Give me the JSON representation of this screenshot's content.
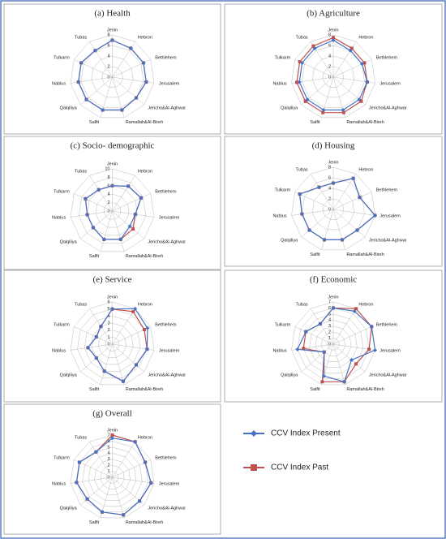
{
  "chart_data": [
    {
      "type": "radar",
      "title": "(a) Health",
      "categories": [
        "Jenin",
        "Hebron",
        "Bethlehem",
        "Jerusalem",
        "Jericho&Al-Aghwar",
        "Ramallah&Al-Bireh",
        "Salfit",
        "Qalqiliya",
        "Nablus",
        "Tulkarm",
        "Tubas"
      ],
      "rlim": [
        0,
        8
      ],
      "rticks": [
        0,
        2,
        4,
        6,
        8
      ],
      "series": [
        {
          "name": "CCV Index Present",
          "color": "#4472c4",
          "values": [
            7,
            6.5,
            6.5,
            6.5,
            6,
            6.5,
            6.5,
            6.5,
            6.5,
            6.5,
            6
          ]
        },
        {
          "name": "CCV Index Past",
          "color": "#c0504d",
          "values": [
            7,
            6.5,
            6.5,
            6.5,
            6,
            6.5,
            6.5,
            6.5,
            6.5,
            6.5,
            6
          ]
        }
      ]
    },
    {
      "type": "radar",
      "title": "(b) Agriculture",
      "categories": [
        "Jenin",
        "Hebron",
        "Bethlehem",
        "Jerusalem",
        "Jericho&Al-Aghwar",
        "Ramallah&Al-Bireh",
        "Salfit",
        "Qalqiliya",
        "Nablus",
        "Tulkarm",
        "Tubas"
      ],
      "rlim": [
        0,
        8
      ],
      "rticks": [
        0,
        2,
        4,
        6,
        8
      ],
      "series": [
        {
          "name": "CCV Index Present",
          "color": "#4472c4",
          "values": [
            7,
            6,
            6,
            6.5,
            6.5,
            6.5,
            6.5,
            6.5,
            6.5,
            6.5,
            6.5
          ]
        },
        {
          "name": "CCV Index Past",
          "color": "#c0504d",
          "values": [
            7.5,
            6.5,
            6.5,
            6.5,
            7,
            7,
            7,
            7,
            7,
            7,
            7
          ]
        }
      ]
    },
    {
      "type": "radar",
      "title": "(c) Socio- demographic",
      "categories": [
        "Jenin",
        "Hebron",
        "Bethlehem",
        "Jerusalem",
        "Jericho&Al-Aghwar",
        "Ramallah&Al-Bireh",
        "Salfit",
        "Qalqiliya",
        "Nablus",
        "Tulkarm",
        "Tubas"
      ],
      "rlim": [
        0,
        10
      ],
      "rticks": [
        0,
        2,
        4,
        6,
        8,
        10
      ],
      "series": [
        {
          "name": "CCV Index Present",
          "color": "#4472c4",
          "values": [
            6,
            7,
            7.5,
            5.5,
            5.5,
            7,
            7,
            6,
            6,
            7,
            6
          ]
        },
        {
          "name": "CCV Index Past",
          "color": "#c0504d",
          "values": [
            6,
            7,
            7.5,
            5.5,
            6.5,
            7,
            7,
            6,
            6,
            7,
            6
          ]
        }
      ]
    },
    {
      "type": "radar",
      "title": "(d) Housing",
      "categories": [
        "Jenin",
        "Hebron",
        "Bethlehem",
        "Jerusalem",
        "Jericho&Al-Aghwar",
        "Ramallah&Al-Bireh",
        "Salfit",
        "Qalqiliya",
        "Nablus",
        "Tulkarm",
        "Tubas"
      ],
      "rlim": [
        0,
        8
      ],
      "rticks": [
        0,
        2,
        4,
        6,
        8
      ],
      "series": [
        {
          "name": "CCV Index Present",
          "color": "#4472c4",
          "values": [
            5,
            7,
            5.5,
            8,
            6,
            6,
            6,
            6,
            6,
            7,
            5
          ]
        },
        {
          "name": "CCV Index Past",
          "color": "#c0504d",
          "values": [
            5,
            7,
            5.5,
            8,
            6,
            6,
            6,
            6,
            6,
            7,
            5
          ]
        }
      ]
    },
    {
      "type": "radar",
      "title": "(e) Service",
      "categories": [
        "Jenin",
        "Hebron",
        "Bethlehem",
        "Jerusalem",
        "Jericho&Al-Aghwar",
        "Ramallah&Al-Bireh",
        "Salfit",
        "Qalqiliya",
        "Nablus",
        "Tulkarm",
        "Tubas"
      ],
      "rlim": [
        0,
        6
      ],
      "rticks": [
        0,
        1,
        2,
        3,
        4,
        5,
        6
      ],
      "series": [
        {
          "name": "CCV Index Present",
          "color": "#4472c4",
          "values": [
            5,
            6,
            5.5,
            5,
            4.5,
            5.5,
            4,
            3,
            3.5,
            2.5,
            3
          ]
        },
        {
          "name": "CCV Index Past",
          "color": "#c0504d",
          "values": [
            5,
            5.5,
            5,
            5,
            4.5,
            5.5,
            4,
            3,
            3.5,
            2.5,
            3
          ]
        }
      ]
    },
    {
      "type": "radar",
      "title": "(f) Economic",
      "categories": [
        "Jenin",
        "Hebron",
        "Bethlehem",
        "Jerusalem",
        "Jericho&Al-Aghwar",
        "Ramallah&Al-Bireh",
        "Salfit",
        "Qalqiliya",
        "Nablus",
        "Tulkarm",
        "Tubas"
      ],
      "rlim": [
        0,
        7
      ],
      "rticks": [
        0,
        1,
        2,
        3,
        4,
        5,
        6,
        7
      ],
      "series": [
        {
          "name": "CCV Index Present",
          "color": "#4472c4",
          "values": [
            6,
            6.5,
            7,
            7,
            4,
            6.5,
            5.5,
            2,
            6,
            5,
            4
          ]
        },
        {
          "name": "CCV Index Past",
          "color": "#c0504d",
          "values": [
            6,
            7,
            7,
            6,
            5,
            6.5,
            6.5,
            2,
            5,
            5,
            4
          ]
        }
      ]
    },
    {
      "type": "radar",
      "title": "(g) Overall",
      "categories": [
        "Jenin",
        "Hebron",
        "Bethlehem",
        "Jerusalem",
        "Jericho&Al-Aghwar",
        "Ramallah&Al-Bireh",
        "Salfit",
        "Qalqiliya",
        "Nablus",
        "Tulkarm",
        "Tubas"
      ],
      "rlim": [
        0,
        7
      ],
      "rticks": [
        0,
        1,
        2,
        3,
        4,
        5,
        6,
        7
      ],
      "series": [
        {
          "name": "CCV Index Present",
          "color": "#4472c4",
          "values": [
            6.5,
            7,
            6,
            6.5,
            6,
            6.5,
            6,
            5.5,
            6,
            6,
            5
          ]
        },
        {
          "name": "CCV Index Past",
          "color": "#c0504d",
          "values": [
            7,
            7,
            6,
            6.5,
            6,
            6.5,
            6,
            5.5,
            6,
            6,
            5
          ]
        }
      ]
    }
  ]
}
